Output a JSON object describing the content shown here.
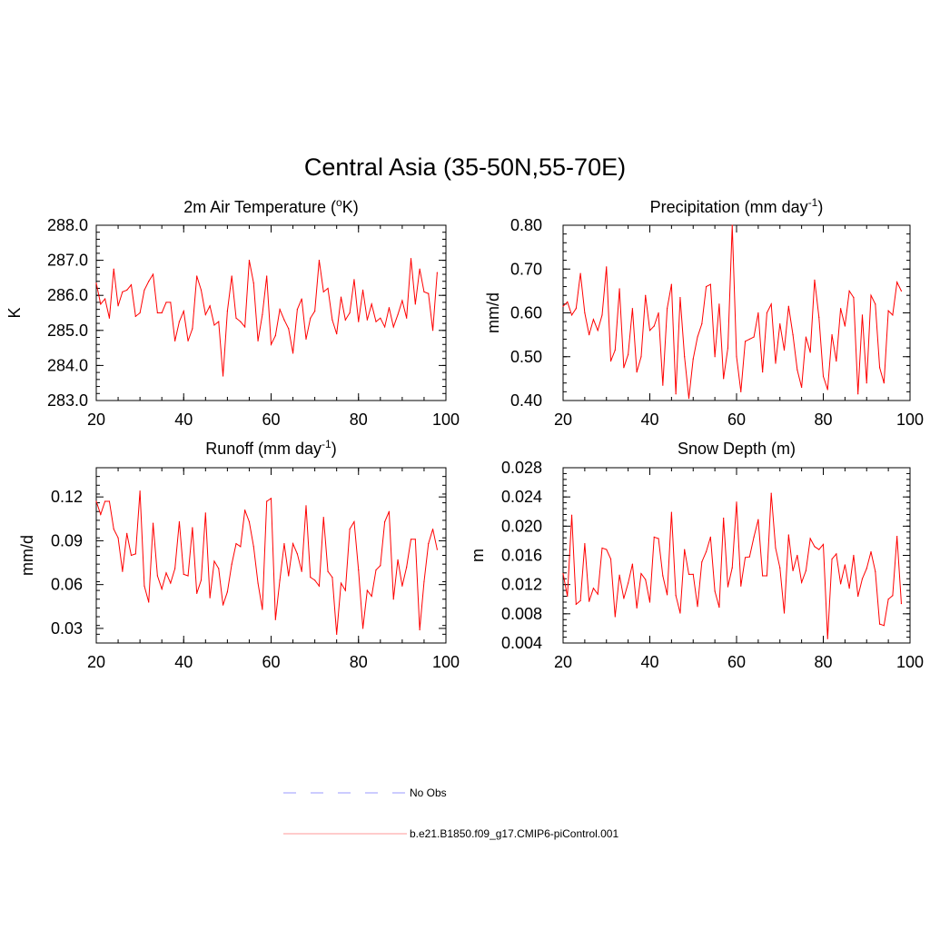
{
  "figure": {
    "title": "Central Asia (35-50N,55-70E)"
  },
  "chart_data": [
    {
      "type": "line",
      "title": "2m Air Temperature (",
      "title_sup": "o",
      "title_after": "K)",
      "ylabel": "K",
      "xlim": [
        20,
        100
      ],
      "ylim": [
        283.0,
        288.0
      ],
      "xticks": [
        20,
        40,
        60,
        80,
        100
      ],
      "xtick_labels": [
        "20",
        "40",
        "60",
        "80",
        "100"
      ],
      "yticks": [
        283.0,
        284.0,
        285.0,
        286.0,
        287.0,
        288.0
      ],
      "ytick_labels": [
        "283.0",
        "284.0",
        "285.0",
        "286.0",
        "287.0",
        "288.0"
      ],
      "yminor_step": 0.2,
      "series": [
        {
          "color": "#ff0000",
          "x": [
            20,
            21,
            22,
            23,
            24,
            25,
            26,
            27,
            28,
            29,
            30,
            31,
            32,
            33,
            34,
            35,
            36,
            37,
            38,
            39,
            40,
            41,
            42,
            43,
            44,
            45,
            46,
            47,
            48,
            49,
            50,
            51,
            52,
            53,
            54,
            55,
            56,
            57,
            58,
            59,
            60,
            61,
            62,
            63,
            64,
            65,
            66,
            67,
            68,
            69,
            70,
            71,
            72,
            73,
            74,
            75,
            76,
            77,
            78,
            79,
            80,
            81,
            82,
            83,
            84,
            85,
            86,
            87,
            88,
            89,
            90,
            91,
            92,
            93,
            94,
            95,
            96,
            97,
            98
          ],
          "y": [
            286.35,
            285.75,
            285.9,
            285.35,
            286.75,
            285.7,
            286.1,
            286.15,
            286.3,
            285.4,
            285.5,
            286.15,
            286.4,
            286.6,
            285.5,
            285.5,
            285.8,
            285.8,
            284.7,
            285.25,
            285.55,
            284.7,
            285.05,
            286.55,
            286.15,
            285.45,
            285.7,
            285.15,
            285.25,
            283.7,
            285.55,
            286.55,
            285.35,
            285.25,
            285.1,
            287.0,
            286.35,
            284.7,
            285.45,
            286.55,
            284.6,
            284.85,
            285.6,
            285.3,
            285.05,
            284.35,
            285.6,
            285.9,
            284.75,
            285.35,
            285.55,
            287.0,
            286.1,
            286.2,
            285.3,
            284.9,
            285.95,
            285.3,
            285.5,
            286.45,
            285.25,
            286.15,
            285.3,
            285.75,
            285.25,
            285.35,
            285.1,
            285.65,
            285.1,
            285.45,
            285.85,
            285.35,
            287.05,
            285.75,
            286.75,
            286.1,
            286.05,
            285.0,
            286.65
          ]
        }
      ]
    },
    {
      "type": "line",
      "title": "Precipitation (mm day",
      "title_sup": "-1",
      "title_after": ")",
      "ylabel": "mm/d",
      "xlim": [
        20,
        100
      ],
      "ylim": [
        0.4,
        0.8
      ],
      "xticks": [
        20,
        40,
        60,
        80,
        100
      ],
      "xtick_labels": [
        "20",
        "40",
        "60",
        "80",
        "100"
      ],
      "yticks": [
        0.4,
        0.5,
        0.6,
        0.7,
        0.8
      ],
      "ytick_labels": [
        "0.40",
        "0.50",
        "0.60",
        "0.70",
        "0.80"
      ],
      "yminor_step": 0.02,
      "series": [
        {
          "color": "#ff0000",
          "x": [
            20,
            21,
            22,
            23,
            24,
            25,
            26,
            27,
            28,
            29,
            30,
            31,
            32,
            33,
            34,
            35,
            36,
            37,
            38,
            39,
            40,
            41,
            42,
            43,
            44,
            45,
            46,
            47,
            48,
            49,
            50,
            51,
            52,
            53,
            54,
            55,
            56,
            57,
            58,
            59,
            60,
            61,
            62,
            63,
            64,
            65,
            66,
            67,
            68,
            69,
            70,
            71,
            72,
            73,
            74,
            75,
            76,
            77,
            78,
            79,
            80,
            81,
            82,
            83,
            84,
            85,
            86,
            87,
            88,
            89,
            90,
            91,
            92,
            93,
            94,
            95,
            96,
            97,
            98
          ],
          "y": [
            0.615,
            0.625,
            0.595,
            0.61,
            0.69,
            0.6,
            0.55,
            0.585,
            0.56,
            0.595,
            0.705,
            0.49,
            0.515,
            0.655,
            0.475,
            0.505,
            0.61,
            0.465,
            0.5,
            0.64,
            0.56,
            0.57,
            0.6,
            0.435,
            0.61,
            0.665,
            0.415,
            0.635,
            0.5,
            0.405,
            0.495,
            0.545,
            0.575,
            0.66,
            0.665,
            0.5,
            0.62,
            0.45,
            0.52,
            0.8,
            0.5,
            0.42,
            0.535,
            0.54,
            0.545,
            0.6,
            0.465,
            0.6,
            0.62,
            0.485,
            0.575,
            0.515,
            0.615,
            0.55,
            0.47,
            0.43,
            0.545,
            0.51,
            0.675,
            0.59,
            0.455,
            0.425,
            0.55,
            0.49,
            0.61,
            0.57,
            0.65,
            0.635,
            0.415,
            0.595,
            0.44,
            0.64,
            0.62,
            0.475,
            0.44,
            0.605,
            0.595,
            0.67,
            0.65
          ]
        }
      ]
    },
    {
      "type": "line",
      "title": "Runoff (mm day",
      "title_sup": "-1",
      "title_after": ")",
      "ylabel": "mm/d",
      "xlim": [
        20,
        100
      ],
      "ylim": [
        0.02,
        0.14
      ],
      "xticks": [
        20,
        40,
        60,
        80,
        100
      ],
      "xtick_labels": [
        "20",
        "40",
        "60",
        "80",
        "100"
      ],
      "yticks": [
        0.03,
        0.06,
        0.09,
        0.12
      ],
      "ytick_labels": [
        "0.03",
        "0.06",
        "0.09",
        "0.12"
      ],
      "yminor_step": 0.006,
      "series": [
        {
          "color": "#ff0000",
          "x": [
            20,
            21,
            22,
            23,
            24,
            25,
            26,
            27,
            28,
            29,
            30,
            31,
            32,
            33,
            34,
            35,
            36,
            37,
            38,
            39,
            40,
            41,
            42,
            43,
            44,
            45,
            46,
            47,
            48,
            49,
            50,
            51,
            52,
            53,
            54,
            55,
            56,
            57,
            58,
            59,
            60,
            61,
            62,
            63,
            64,
            65,
            66,
            67,
            68,
            69,
            70,
            71,
            72,
            73,
            74,
            75,
            76,
            77,
            78,
            79,
            80,
            81,
            82,
            83,
            84,
            85,
            86,
            87,
            88,
            89,
            90,
            91,
            92,
            93,
            94,
            95,
            96,
            97,
            98
          ],
          "y": [
            0.117,
            0.108,
            0.117,
            0.117,
            0.098,
            0.092,
            0.069,
            0.095,
            0.08,
            0.081,
            0.124,
            0.059,
            0.048,
            0.102,
            0.066,
            0.057,
            0.068,
            0.061,
            0.071,
            0.103,
            0.067,
            0.066,
            0.099,
            0.054,
            0.063,
            0.109,
            0.051,
            0.076,
            0.071,
            0.046,
            0.055,
            0.074,
            0.088,
            0.086,
            0.111,
            0.103,
            0.086,
            0.061,
            0.043,
            0.117,
            0.119,
            0.036,
            0.063,
            0.088,
            0.066,
            0.088,
            0.081,
            0.069,
            0.114,
            0.065,
            0.063,
            0.059,
            0.106,
            0.069,
            0.065,
            0.026,
            0.061,
            0.056,
            0.098,
            0.103,
            0.07,
            0.03,
            0.056,
            0.052,
            0.07,
            0.073,
            0.103,
            0.11,
            0.05,
            0.077,
            0.059,
            0.072,
            0.091,
            0.091,
            0.029,
            0.062,
            0.088,
            0.098,
            0.084
          ]
        }
      ]
    },
    {
      "type": "line",
      "title": "Snow Depth (m)",
      "title_sup": "",
      "title_after": "",
      "ylabel": "m",
      "xlim": [
        20,
        100
      ],
      "ylim": [
        0.004,
        0.028
      ],
      "xticks": [
        20,
        40,
        60,
        80,
        100
      ],
      "xtick_labels": [
        "20",
        "40",
        "60",
        "80",
        "100"
      ],
      "yticks": [
        0.004,
        0.008,
        0.012,
        0.016,
        0.02,
        0.024,
        0.028
      ],
      "ytick_labels": [
        "0.004",
        "0.008",
        "0.012",
        "0.016",
        "0.020",
        "0.024",
        "0.028"
      ],
      "yminor_step": 0.0008,
      "series": [
        {
          "color": "#ff0000",
          "x": [
            20,
            21,
            22,
            23,
            24,
            25,
            26,
            27,
            28,
            29,
            30,
            31,
            32,
            33,
            34,
            35,
            36,
            37,
            38,
            39,
            40,
            41,
            42,
            43,
            44,
            45,
            46,
            47,
            48,
            49,
            50,
            51,
            52,
            53,
            54,
            55,
            56,
            57,
            58,
            59,
            60,
            61,
            62,
            63,
            64,
            65,
            66,
            67,
            68,
            69,
            70,
            71,
            72,
            73,
            74,
            75,
            76,
            77,
            78,
            79,
            80,
            81,
            82,
            83,
            84,
            85,
            86,
            87,
            88,
            89,
            90,
            91,
            92,
            93,
            94,
            95,
            96,
            97,
            98
          ],
          "y": [
            0.0135,
            0.0104,
            0.0215,
            0.0093,
            0.0098,
            0.0176,
            0.0097,
            0.0115,
            0.0107,
            0.017,
            0.0168,
            0.0155,
            0.0076,
            0.0133,
            0.0101,
            0.0122,
            0.0148,
            0.0088,
            0.0135,
            0.0127,
            0.0096,
            0.0185,
            0.0183,
            0.0132,
            0.0106,
            0.0219,
            0.0105,
            0.0081,
            0.0168,
            0.0134,
            0.0134,
            0.009,
            0.0151,
            0.0165,
            0.0185,
            0.0111,
            0.0089,
            0.0211,
            0.0117,
            0.0143,
            0.0233,
            0.0118,
            0.0157,
            0.0158,
            0.0185,
            0.0209,
            0.0132,
            0.0132,
            0.0245,
            0.017,
            0.0143,
            0.0081,
            0.0188,
            0.0139,
            0.016,
            0.0123,
            0.0139,
            0.0183,
            0.0172,
            0.0168,
            0.0175,
            0.0046,
            0.0155,
            0.0162,
            0.0121,
            0.0147,
            0.0115,
            0.016,
            0.0104,
            0.0128,
            0.0142,
            0.0165,
            0.0138,
            0.0066,
            0.0064,
            0.01,
            0.0105,
            0.0186,
            0.0094
          ]
        }
      ]
    }
  ],
  "legend": {
    "items": [
      {
        "label": "No Obs",
        "color": "#9999ff",
        "dash": "dashed"
      },
      {
        "label": "b.e21.B1850.f09_g17.CMIP6-piControl.001",
        "color": "#ff9999",
        "dash": "solid"
      }
    ]
  }
}
